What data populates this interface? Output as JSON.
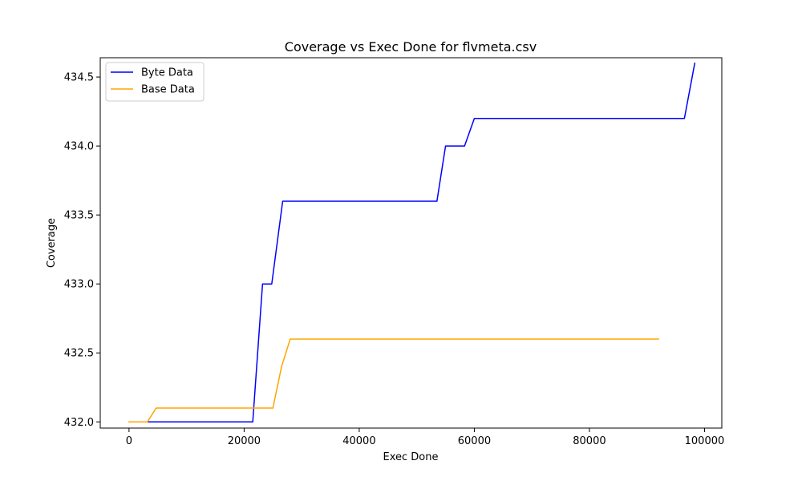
{
  "chart_data": {
    "type": "line",
    "title": "Coverage vs Exec Done for flvmeta.csv",
    "xlabel": "Exec Done",
    "ylabel": "Coverage",
    "xlim": [
      -5000,
      103000
    ],
    "ylim": [
      431.955,
      434.64
    ],
    "xticks": [
      0,
      20000,
      40000,
      60000,
      80000,
      100000
    ],
    "xtick_labels": [
      "0",
      "20000",
      "40000",
      "60000",
      "80000",
      "100000"
    ],
    "yticks": [
      432.0,
      432.5,
      433.0,
      433.5,
      434.0,
      434.5
    ],
    "ytick_labels": [
      "432.0",
      "432.5",
      "433.0",
      "433.5",
      "434.0",
      "434.5"
    ],
    "grid": false,
    "legend_position": "upper-left",
    "series": [
      {
        "name": "Byte Data",
        "color": "#0000ff",
        "x": [
          3300,
          21500,
          23200,
          24800,
          26700,
          53500,
          55000,
          58300,
          60000,
          96500,
          98300
        ],
        "y": [
          432.0,
          432.0,
          433.0,
          433.0,
          433.6,
          433.6,
          434.0,
          434.0,
          434.2,
          434.2,
          434.6
        ]
      },
      {
        "name": "Base Data",
        "color": "#ffa500",
        "x": [
          0,
          3200,
          4700,
          25000,
          26500,
          28000,
          92000
        ],
        "y": [
          432.0,
          432.0,
          432.1,
          432.1,
          432.4,
          432.6,
          432.6
        ]
      }
    ]
  }
}
